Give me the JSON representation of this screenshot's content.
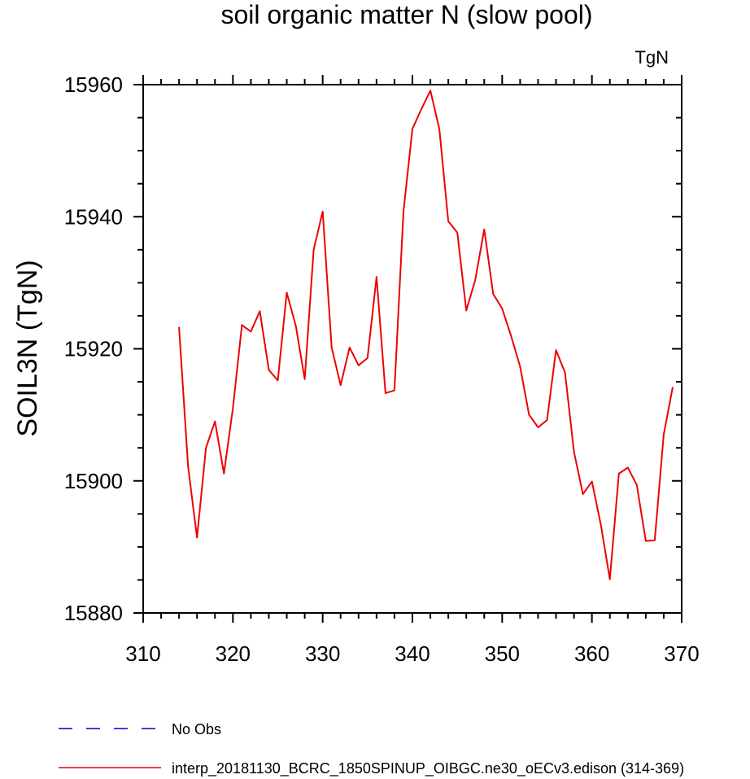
{
  "chart_data": {
    "type": "line",
    "title": "soil organic matter N (slow pool)",
    "units": "TgN",
    "ylabel": "SOIL3N  (TgN)",
    "xlabel": "",
    "xlim": [
      310,
      370
    ],
    "ylim": [
      15880,
      15960
    ],
    "xticks": [
      310,
      320,
      330,
      340,
      350,
      360,
      370
    ],
    "yticks": [
      15880,
      15900,
      15920,
      15940,
      15960
    ],
    "legend_position": "bottom-left",
    "series": [
      {
        "name": "No Obs",
        "color": "#0000cc",
        "dash": "dashed",
        "x": [],
        "y": []
      },
      {
        "name": "interp_20181130_BCRC_1850SPINUP_OIBGC.ne30_oECv3.edison (314-369)",
        "color": "#ee0000",
        "dash": "solid",
        "x": [
          314,
          315,
          316,
          317,
          318,
          319,
          320,
          321,
          322,
          323,
          324,
          325,
          326,
          327,
          328,
          329,
          330,
          331,
          332,
          333,
          334,
          335,
          336,
          337,
          338,
          339,
          340,
          341,
          342,
          343,
          344,
          345,
          346,
          347,
          348,
          349,
          350,
          351,
          352,
          353,
          354,
          355,
          356,
          357,
          358,
          359,
          360,
          361,
          362,
          363,
          364,
          365,
          366,
          367,
          368,
          369
        ],
        "y": [
          15923.3,
          15902.2,
          15891.4,
          15905.0,
          15909.0,
          15901.1,
          15911.0,
          15923.6,
          15922.6,
          15925.7,
          15916.8,
          15915.2,
          15928.5,
          15923.5,
          15915.4,
          15935.0,
          15940.8,
          15920.2,
          15914.5,
          15920.2,
          15917.5,
          15918.6,
          15930.9,
          15913.3,
          15913.7,
          15940.8,
          15953.3,
          15956.3,
          15959.1,
          15953.3,
          15939.3,
          15937.6,
          15925.8,
          15930.4,
          15938.1,
          15928.3,
          15926.1,
          15921.9,
          15917.3,
          15910.0,
          15908.1,
          15909.2,
          15919.8,
          15916.4,
          15904.4,
          15898.0,
          15899.9,
          15893.3,
          15885.1,
          15901.1,
          15902.0,
          15899.4,
          15890.9,
          15891.0,
          15907.0,
          15914.2
        ]
      }
    ]
  }
}
